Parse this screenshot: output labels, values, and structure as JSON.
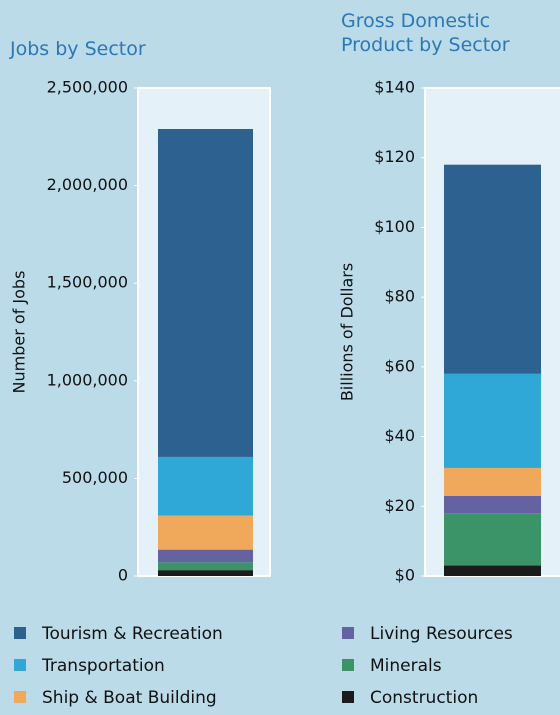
{
  "chart_data": [
    {
      "type": "bar",
      "stacked": true,
      "title": "Jobs by Sector",
      "ylabel": "Number of Jobs",
      "categories": [
        null
      ],
      "series": [
        {
          "name": "Construction",
          "color": "#1b1b1b",
          "values": [
            30000
          ]
        },
        {
          "name": "Minerals",
          "color": "#3a9467",
          "values": [
            40000
          ]
        },
        {
          "name": "Living Resources",
          "color": "#6462a0",
          "values": [
            65000
          ]
        },
        {
          "name": "Ship & Boat Building",
          "color": "#f0a95a",
          "values": [
            175000
          ]
        },
        {
          "name": "Transportation",
          "color": "#2fa8d8",
          "values": [
            300000
          ]
        },
        {
          "name": "Tourism & Recreation",
          "color": "#2d6190",
          "values": [
            1680000
          ]
        }
      ],
      "ylim": [
        0,
        2500000
      ],
      "yticks": [
        0,
        {
          "value": 500000,
          "label": "500,000"
        },
        {
          "value": 1000000,
          "label": "1,000,000"
        },
        {
          "value": 1500000,
          "label": "1,500,000"
        },
        {
          "value": 2000000,
          "label": "2,000,000"
        },
        {
          "value": 2500000,
          "label": "2,500,000"
        }
      ]
    },
    {
      "type": "bar",
      "stacked": true,
      "title": "Gross Domestic Product by Sector",
      "ylabel": "Billions of Dollars",
      "categories": [
        null
      ],
      "series": [
        {
          "name": "Construction",
          "color": "#1b1b1b",
          "values": [
            3
          ]
        },
        {
          "name": "Minerals",
          "color": "#3a9467",
          "values": [
            15
          ]
        },
        {
          "name": "Living Resources",
          "color": "#6462a0",
          "values": [
            5
          ]
        },
        {
          "name": "Ship & Boat Building",
          "color": "#f0a95a",
          "values": [
            8
          ]
        },
        {
          "name": "Transportation",
          "color": "#2fa8d8",
          "values": [
            27
          ]
        },
        {
          "name": "Tourism & Recreation",
          "color": "#2d6190",
          "values": [
            60
          ]
        }
      ],
      "ylim": [
        0,
        140
      ],
      "yticks": [
        {
          "value": 0,
          "label": "$0"
        },
        {
          "value": 20,
          "label": "$20"
        },
        {
          "value": 40,
          "label": "$40"
        },
        {
          "value": 60,
          "label": "$60"
        },
        {
          "value": 80,
          "label": "$80"
        },
        {
          "value": 100,
          "label": "$100"
        },
        {
          "value": 120,
          "label": "$120"
        },
        {
          "value": 140,
          "label": "$140"
        }
      ]
    }
  ]
}
